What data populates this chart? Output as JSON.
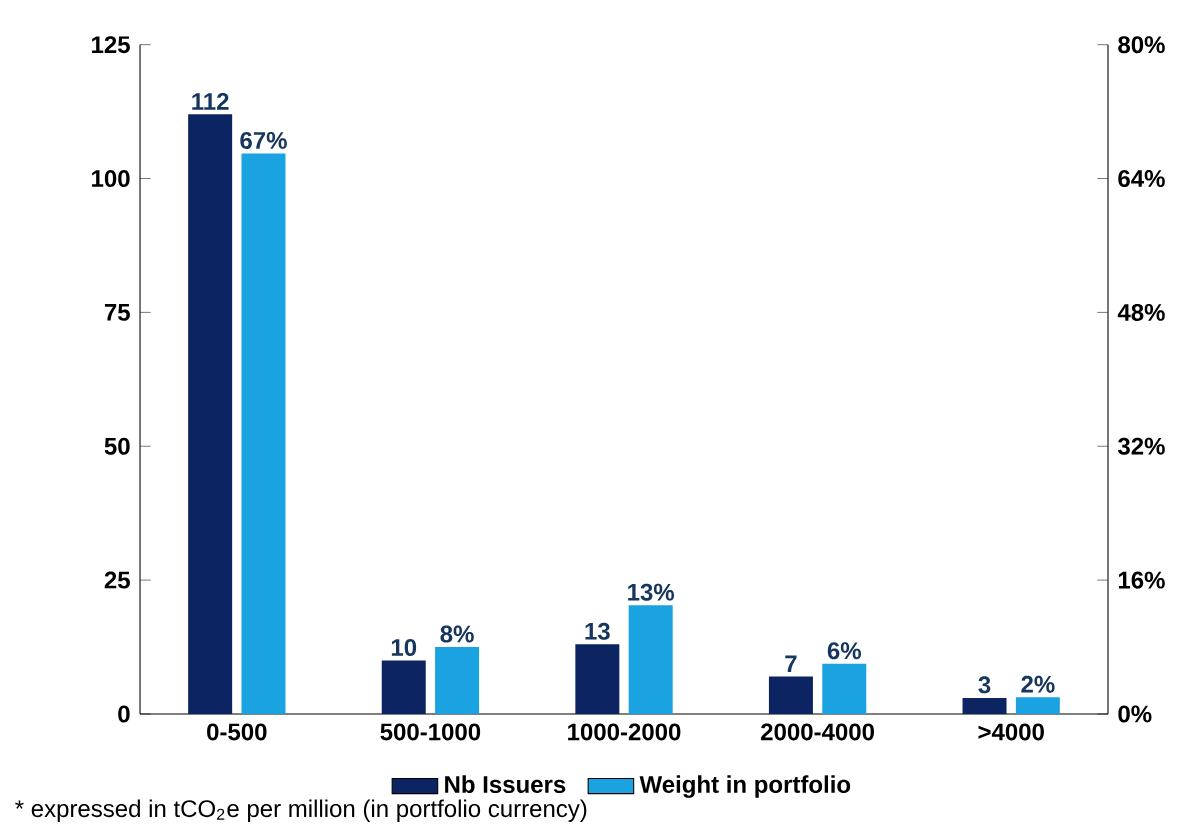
{
  "chart_data": {
    "type": "bar",
    "categories": [
      "0-500",
      "500-1000",
      "1000-2000",
      "2000-4000",
      ">4000"
    ],
    "series": [
      {
        "name": "Nb Issuers",
        "color": "#0c2461",
        "values": [
          112,
          10,
          13,
          7,
          3
        ],
        "value_labels": [
          "112",
          "10",
          "13",
          "7",
          "3"
        ]
      },
      {
        "name": "Weight in portfolio",
        "color": "#1aa3e0",
        "values": [
          67,
          8,
          13,
          6,
          2
        ],
        "value_labels": [
          "67%",
          "8%",
          "13%",
          "6%",
          "2%"
        ],
        "axis": "y2"
      }
    ],
    "ylim": [
      0,
      125
    ],
    "yticks": [
      0,
      25,
      50,
      75,
      100,
      125
    ],
    "y2lim": [
      0,
      80
    ],
    "y2ticks": [
      {
        "value": 0,
        "label": "0%"
      },
      {
        "value": 16,
        "label": "16%"
      },
      {
        "value": 32,
        "label": "32%"
      },
      {
        "value": 48,
        "label": "48%"
      },
      {
        "value": 64,
        "label": "64%"
      },
      {
        "value": 80,
        "label": "80%"
      }
    ],
    "legend": "bottom",
    "annotations": [
      "* expressed  in tCO$_{2}$e per million  (in portfolio currency)"
    ]
  }
}
